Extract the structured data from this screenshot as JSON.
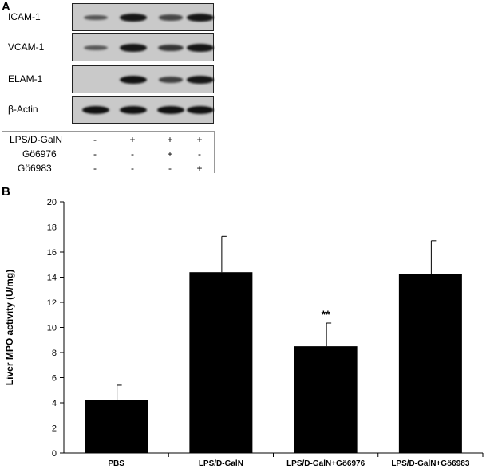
{
  "panel_a": {
    "letter": "A",
    "blots": [
      {
        "label": "ICAM-1",
        "bands": [
          0.45,
          0.95,
          0.55,
          0.95
        ]
      },
      {
        "label": "VCAM-1",
        "bands": [
          0.4,
          0.95,
          0.7,
          0.95
        ]
      },
      {
        "label": "ELAM-1",
        "bands": [
          0.0,
          1.0,
          0.6,
          0.95
        ]
      },
      {
        "label": "β-Actin",
        "bands": [
          1.0,
          1.0,
          1.0,
          1.0
        ]
      }
    ],
    "treatments": [
      {
        "name": "LPS/D-GalN",
        "marks": [
          "-",
          "+",
          "+",
          "+"
        ]
      },
      {
        "name": "Gö6976",
        "marks": [
          "-",
          "-",
          "+",
          "-"
        ]
      },
      {
        "name": "Gö6983",
        "marks": [
          "-",
          "-",
          "-",
          "+"
        ]
      }
    ]
  },
  "panel_b": {
    "letter": "B"
  },
  "chart_data": {
    "type": "bar",
    "categories": [
      "PBS",
      "LPS/D-GalN",
      "LPS/D-GalN+Gö6976",
      "LPS/D-GalN+Gö6983"
    ],
    "values": [
      4.25,
      14.4,
      8.5,
      14.25
    ],
    "errors": [
      1.15,
      2.85,
      1.85,
      2.65
    ],
    "annotations": [
      "",
      "",
      "**",
      ""
    ],
    "ylabel": "Liver MPO activity (U/mg)",
    "xlabel": "",
    "ylim": [
      0,
      20
    ],
    "yticks": [
      0,
      2,
      4,
      6,
      8,
      10,
      12,
      14,
      16,
      18,
      20
    ],
    "bar_color": "#000000",
    "grid": false
  }
}
